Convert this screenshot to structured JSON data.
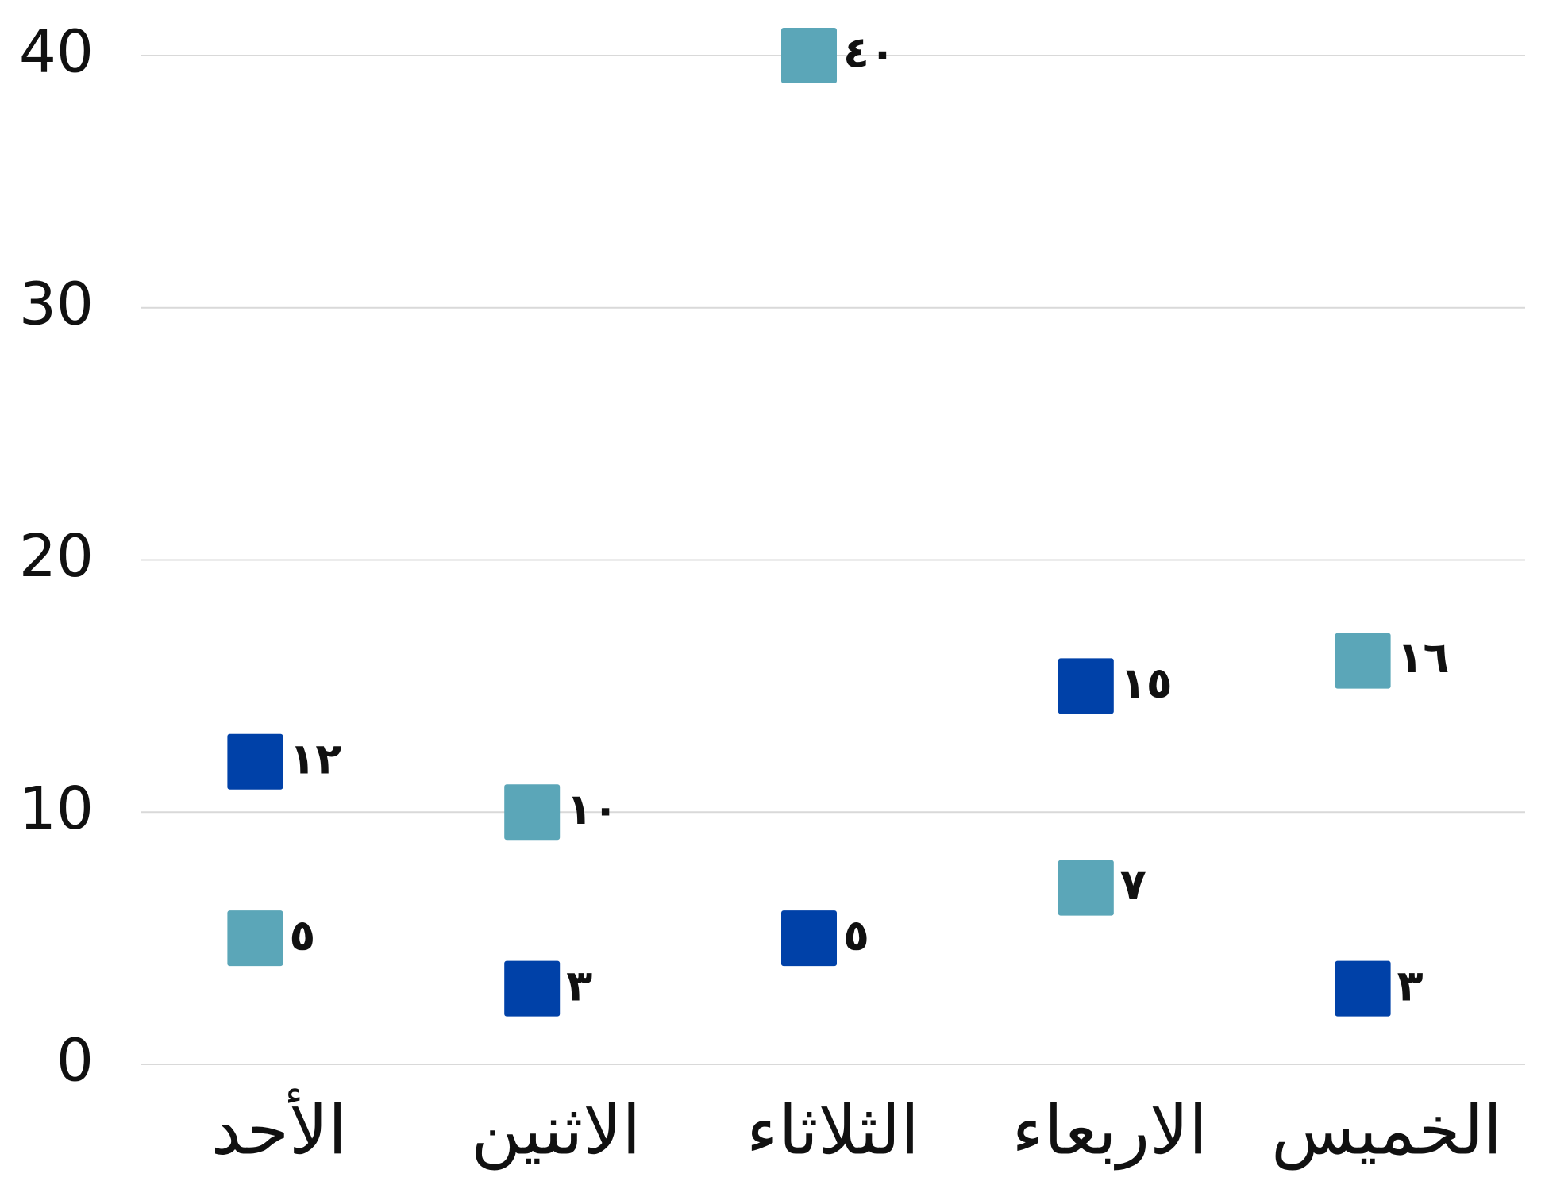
{
  "chart_data": {
    "type": "scatter",
    "categories": [
      "الأحد",
      "الاثنين",
      "الثلاثاء",
      "الاربعاء",
      "الخميس"
    ],
    "series": [
      {
        "color": "#0041a8",
        "values": [
          12,
          3,
          5,
          15,
          3
        ],
        "value_labels": [
          "١٢",
          "٣",
          "٥",
          "١٥",
          "٣"
        ]
      },
      {
        "color": "#5ba6b8",
        "values": [
          5,
          10,
          40,
          7,
          16
        ],
        "value_labels": [
          "٥",
          "١٠",
          "٤٠",
          "٧",
          "١٦"
        ]
      }
    ],
    "ylim": [
      0,
      40
    ],
    "yticks": [
      0,
      10,
      20,
      30,
      40
    ],
    "grid": true
  }
}
